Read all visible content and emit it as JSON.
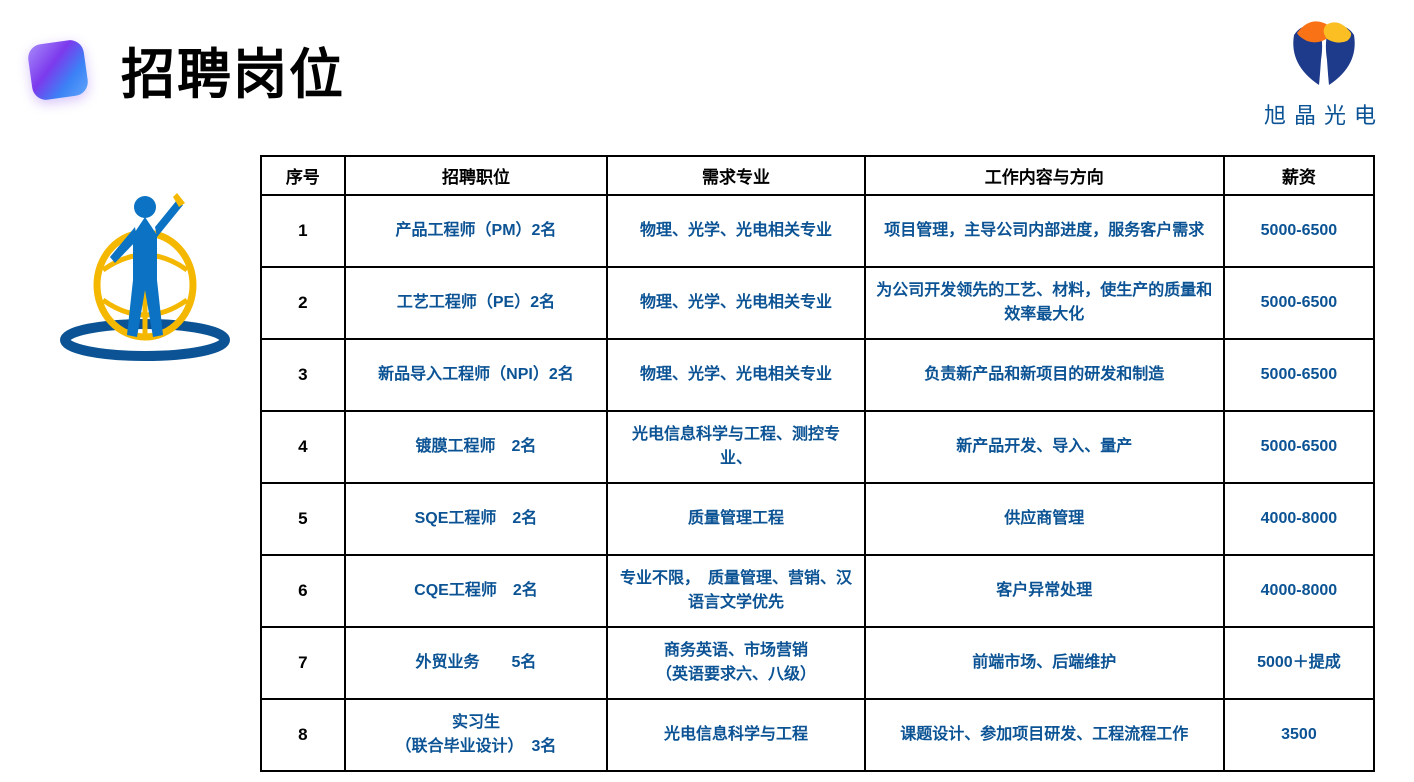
{
  "header": {
    "title": "招聘岗位",
    "company_name": "旭晶光电"
  },
  "table": {
    "columns": [
      "序号",
      "招聘职位",
      "需求专业",
      "工作内容与方向",
      "薪资"
    ],
    "rows": [
      {
        "idx": "1",
        "position": "产品工程师（PM）2名",
        "major": "物理、光学、光电相关专业",
        "desc": "项目管理，主导公司内部进度，服务客户需求",
        "salary": "5000-6500"
      },
      {
        "idx": "2",
        "position": "工艺工程师（PE）2名",
        "major": "物理、光学、光电相关专业",
        "desc": "为公司开发领先的工艺、材料，使生产的质量和效率最大化",
        "salary": "5000-6500"
      },
      {
        "idx": "3",
        "position": "新品导入工程师（NPI）2名",
        "major": "物理、光学、光电相关专业",
        "desc": "负责新产品和新项目的研发和制造",
        "salary": "5000-6500"
      },
      {
        "idx": "4",
        "position": "镀膜工程师　2名",
        "major": "光电信息科学与工程、测控专业、",
        "desc": "新产品开发、导入、量产",
        "salary": "5000-6500"
      },
      {
        "idx": "5",
        "position": "SQE工程师　2名",
        "major": "质量管理工程",
        "desc": "供应商管理",
        "salary": "4000-8000"
      },
      {
        "idx": "6",
        "position": "CQE工程师　2名",
        "major": "专业不限，　质量管理、营销、汉语言文学优先",
        "desc": "客户异常处理",
        "salary": "4000-8000"
      },
      {
        "idx": "7",
        "position": "外贸业务　　5名",
        "major": "商务英语、市场营销\n（英语要求六、八级）",
        "desc": "前端市场、后端维护",
        "salary": "5000＋提成"
      },
      {
        "idx": "8",
        "position": "实习生\n（联合毕业设计）　3名",
        "major": "光电信息科学与工程",
        "desc": "课题设计、参加项目研发、工程流程工作",
        "salary": "3500"
      }
    ]
  },
  "colors": {
    "text_main": "#000000",
    "text_brand": "#0b5394",
    "border": "#000000",
    "background": "#ffffff"
  }
}
